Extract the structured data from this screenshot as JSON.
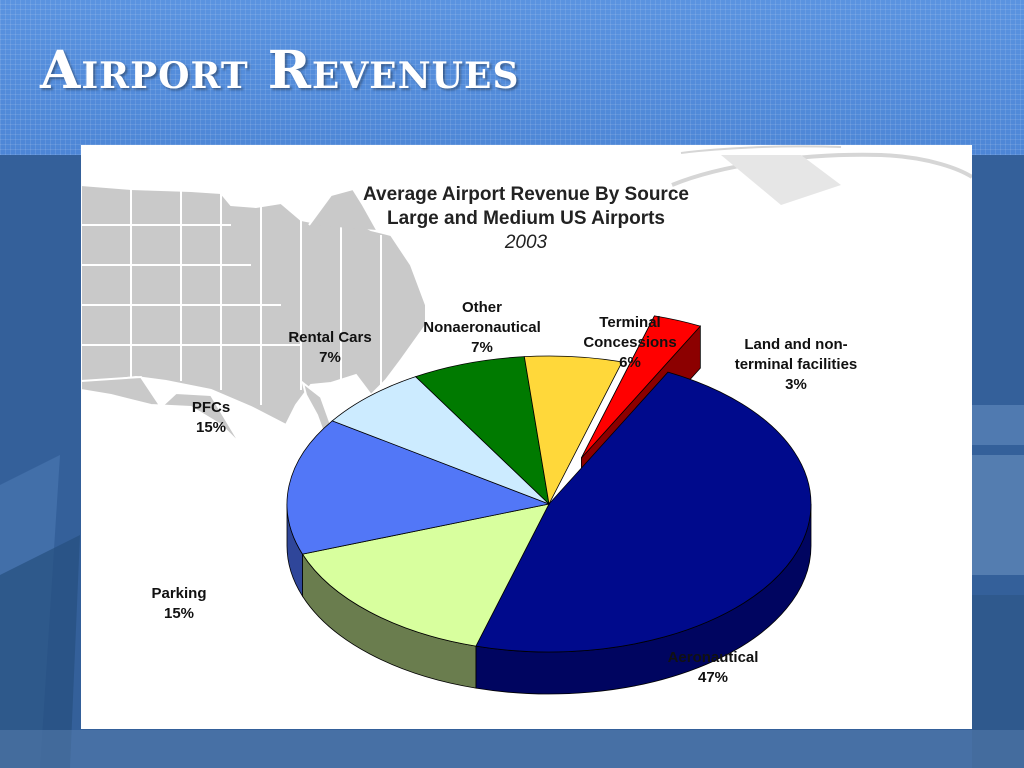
{
  "slide": {
    "title": "Airport Revenues"
  },
  "chart_data": {
    "type": "pie",
    "title": "Average Airport Revenue By Source",
    "subtitle": "Large and Medium US Airports",
    "year": "2003",
    "slices": [
      {
        "name": "Aeronautical",
        "value": 47,
        "label": "47%",
        "color": "#000a8c",
        "side_color": "#000560",
        "exploded": false
      },
      {
        "name": "Parking",
        "value": 15,
        "label": "15%",
        "color": "#d8ff9e",
        "side_color": "#6a7d4e",
        "exploded": false
      },
      {
        "name": "PFCs",
        "value": 15,
        "label": "15%",
        "color": "#5277f7",
        "side_color": "#2f469a",
        "exploded": false
      },
      {
        "name": "Rental Cars",
        "value": 7,
        "label": "7%",
        "color": "#ccebff",
        "side_color": "#8fa9bb",
        "exploded": false
      },
      {
        "name": "Other Nonaeronautical",
        "value": 7,
        "label": "7%",
        "color": "#007a00",
        "side_color": "#004400",
        "exploded": false
      },
      {
        "name": "Terminal Concessions",
        "value": 6,
        "label": "6%",
        "color": "#ffd83a",
        "side_color": "#9a7d10",
        "exploded": false
      },
      {
        "name": "Land and non-terminal facilities",
        "value": 3,
        "label": "3%",
        "color": "#ff0000",
        "side_color": "#8c0000",
        "exploded": true
      }
    ]
  }
}
